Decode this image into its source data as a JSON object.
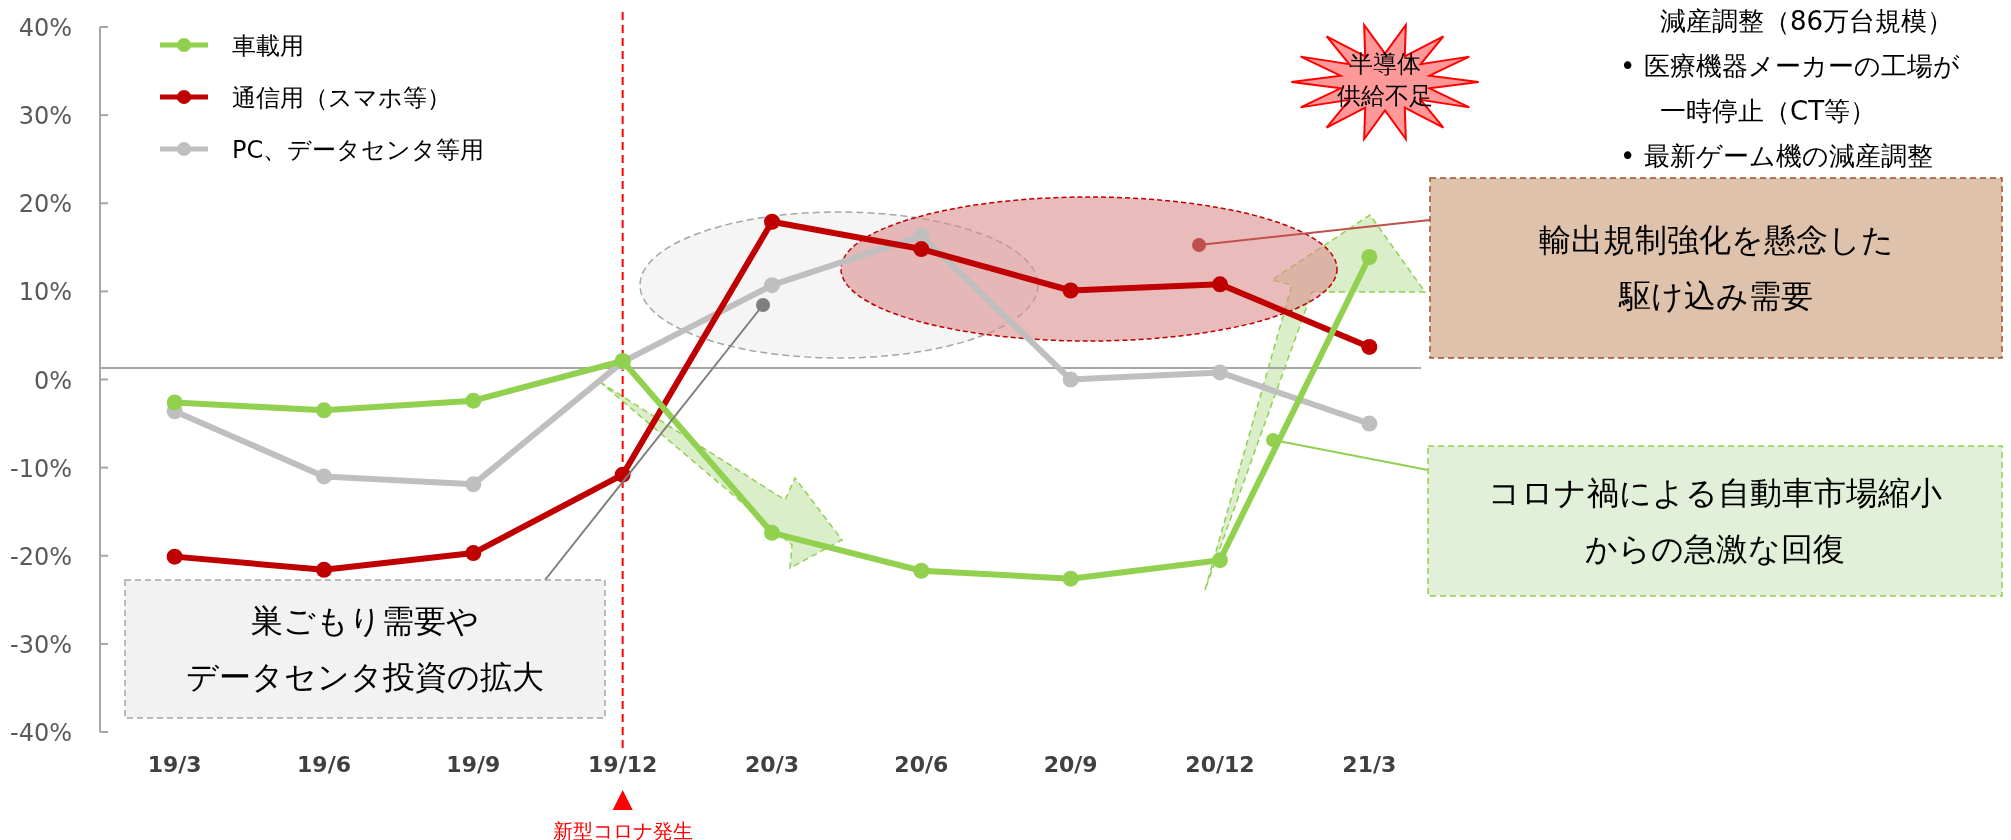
{
  "chart_data": {
    "type": "line",
    "categories": [
      "19/3",
      "19/6",
      "19/9",
      "19/12",
      "20/3",
      "20/6",
      "20/9",
      "20/12",
      "21/3"
    ],
    "series": [
      {
        "name": "車載用",
        "color": "#92d050",
        "values": [
          -2.6,
          -3.5,
          -2.4,
          2.1,
          -17.4,
          -21.7,
          -22.6,
          -20.5,
          13.9
        ]
      },
      {
        "name": "通信用（スマホ等）",
        "color": "#c00000",
        "values": [
          -20.1,
          -21.6,
          -19.7,
          -10.8,
          17.9,
          14.8,
          10.1,
          10.8,
          3.7
        ]
      },
      {
        "name": "PC、データセンタ等用",
        "color": "#bfbfbf",
        "values": [
          -3.6,
          -11.0,
          -11.9,
          2.0,
          10.7,
          16.3,
          0.0,
          0.8,
          -5.0
        ]
      }
    ],
    "ylim": [
      -40,
      40
    ],
    "yticks": [
      {
        "value": -40,
        "label": "-40%"
      },
      {
        "value": -30,
        "label": "-30%"
      },
      {
        "value": -20,
        "label": "-20%"
      },
      {
        "value": -10,
        "label": "-10%"
      },
      {
        "value": 0,
        "label": "0%"
      },
      {
        "value": 10,
        "label": "10%"
      },
      {
        "value": 20,
        "label": "20%"
      },
      {
        "value": 30,
        "label": "30%"
      },
      {
        "value": 40,
        "label": "40%"
      }
    ],
    "ref_lines": [
      {
        "axis": "x",
        "value": "19/12",
        "label": "新型コロナ発生",
        "color": "#ff0000",
        "line_style": "dashed"
      },
      {
        "axis": "y",
        "value": 1.3,
        "color": "#a6a6a6",
        "line_style": "solid"
      }
    ],
    "annotations": [
      "半導体供給不足",
      "減産調整（86万台規模）",
      "• 医療機器メーカーの工場が一時停止（CT等）",
      "• 最新ゲーム機の減産調整",
      "輸出規制強化を懸念した駆け込み需要",
      "コロナ禍による自動車市場縮小からの急激な回復",
      "巣ごもり需要やデータセンタ投資の拡大"
    ],
    "legend": "top left",
    "marker": "circle",
    "grid": false
  }
}
